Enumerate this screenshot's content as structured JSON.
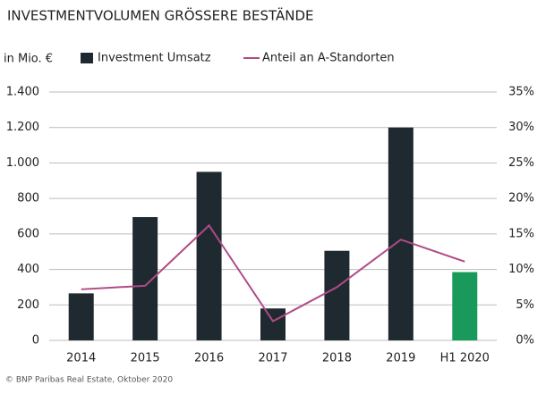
{
  "chart_data": {
    "type": "bar-line",
    "title": "INVESTMENTVOLUMEN GRÖSSERE BESTÄNDE",
    "y_label": "in Mio. €",
    "source": "© BNP Paribas Real Estate, Oktober 2020",
    "categories": [
      "2014",
      "2015",
      "2016",
      "2017",
      "2018",
      "2019",
      "H1 2020"
    ],
    "series": [
      {
        "name": "Investment Umsatz",
        "type": "bar",
        "color": "#1e2a30",
        "colors": [
          "#1e2a30",
          "#1e2a30",
          "#1e2a30",
          "#1e2a30",
          "#1e2a30",
          "#1e2a30",
          "#1a9a5a"
        ],
        "values": [
          265,
          695,
          950,
          180,
          505,
          1200,
          385
        ]
      },
      {
        "name": "Anteil an A-Standorten",
        "type": "line",
        "axis": "y2",
        "color": "#b04a86",
        "values": [
          7.2,
          7.7,
          16.2,
          2.7,
          7.5,
          14.2,
          11.1
        ]
      }
    ],
    "ylim": [
      0,
      1400
    ],
    "yticks": [
      0,
      200,
      400,
      600,
      800,
      {
        "value": 1000,
        "label": "1.000"
      },
      {
        "value": 1200,
        "label": "1.200"
      },
      {
        "value": 1400,
        "label": "1.400"
      }
    ],
    "y2lim": [
      0,
      35
    ],
    "y2ticks": [
      {
        "value": 0,
        "label": "0%"
      },
      {
        "value": 5,
        "label": "5%"
      },
      {
        "value": 10,
        "label": "10%"
      },
      {
        "value": 15,
        "label": "15%"
      },
      {
        "value": 20,
        "label": "20%"
      },
      {
        "value": 25,
        "label": "25%"
      },
      {
        "value": 30,
        "label": "30%"
      },
      {
        "value": 35,
        "label": "35%"
      }
    ],
    "grid": true
  }
}
